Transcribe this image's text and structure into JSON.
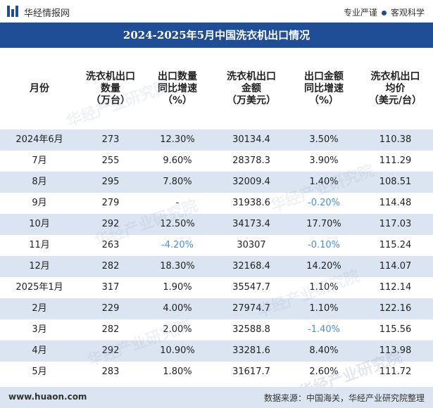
{
  "brand": "华经情报网",
  "slogan": [
    "专业严谨",
    "客观科学"
  ],
  "title": "2024-2025年5月中国洗衣机出口情况",
  "columns": [
    "月份",
    "洗衣机出口\n数量\n（万台）",
    "出口数量\n同比增速\n（%）",
    "洗衣机出口\n金额\n（万美元）",
    "出口金额\n同比增速\n（%）",
    "洗衣机出口\n均价\n（美元/台）"
  ],
  "rows": [
    {
      "month": "2024年6月",
      "qty": "273",
      "qty_yoy": "12.30%",
      "amount": "30134.4",
      "amount_yoy": "3.50%",
      "price": "110.38"
    },
    {
      "month": "7月",
      "qty": "255",
      "qty_yoy": "9.60%",
      "amount": "28378.3",
      "amount_yoy": "3.90%",
      "price": "111.29"
    },
    {
      "month": "8月",
      "qty": "295",
      "qty_yoy": "7.80%",
      "amount": "32009.4",
      "amount_yoy": "1.40%",
      "price": "108.51"
    },
    {
      "month": "9月",
      "qty": "279",
      "qty_yoy": "-",
      "amount": "31938.6",
      "amount_yoy": "-0.20%",
      "price": "114.48"
    },
    {
      "month": "10月",
      "qty": "292",
      "qty_yoy": "12.50%",
      "amount": "34173.4",
      "amount_yoy": "17.70%",
      "price": "117.03"
    },
    {
      "month": "11月",
      "qty": "263",
      "qty_yoy": "-4.20%",
      "amount": "30307",
      "amount_yoy": "-0.10%",
      "price": "115.24"
    },
    {
      "month": "12月",
      "qty": "282",
      "qty_yoy": "18.30%",
      "amount": "32168.4",
      "amount_yoy": "14.20%",
      "price": "114.07"
    },
    {
      "month": "2025年1月",
      "qty": "317",
      "qty_yoy": "1.90%",
      "amount": "35547.7",
      "amount_yoy": "1.10%",
      "price": "112.14"
    },
    {
      "month": "2月",
      "qty": "229",
      "qty_yoy": "4.00%",
      "amount": "27974.7",
      "amount_yoy": "1.10%",
      "price": "122.16"
    },
    {
      "month": "3月",
      "qty": "282",
      "qty_yoy": "2.00%",
      "amount": "32588.8",
      "amount_yoy": "-1.40%",
      "price": "115.56"
    },
    {
      "month": "4月",
      "qty": "292",
      "qty_yoy": "10.90%",
      "amount": "33281.6",
      "amount_yoy": "8.40%",
      "price": "113.98"
    },
    {
      "month": "5月",
      "qty": "283",
      "qty_yoy": "1.80%",
      "amount": "31617.7",
      "amount_yoy": "2.60%",
      "price": "111.72"
    }
  ],
  "footer": {
    "site": "www.huaon.com",
    "source": "数据来源：中国海关，华经产业研究院整理"
  },
  "watermark": "华经产业研究院",
  "colors": {
    "accent": "#1f4e96",
    "row_shade": "#dbe5f1",
    "negative": "#4a8fd6"
  }
}
